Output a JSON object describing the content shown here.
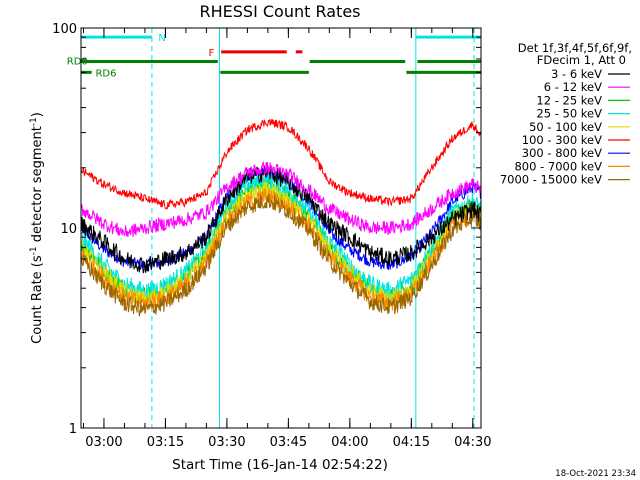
{
  "chart_data": {
    "type": "line",
    "title": "RHESSI Count Rates",
    "xlabel": "Start Time (16-Jan-14 02:54:22)",
    "ylabel_main": "Count Rate (s",
    "ylabel_sup1": "-1",
    "ylabel_mid": " detector segment",
    "ylabel_sup2": "-1",
    "ylabel_end": ")",
    "yscale": "log",
    "ylim": [
      1,
      100
    ],
    "xlim_minutes": [
      -5.6,
      92
    ],
    "xticks": [
      {
        "label": "03:00",
        "min": 0
      },
      {
        "label": "03:15",
        "min": 15
      },
      {
        "label": "03:30",
        "min": 30
      },
      {
        "label": "03:45",
        "min": 45
      },
      {
        "label": "04:00",
        "min": 60
      },
      {
        "label": "04:15",
        "min": 75
      },
      {
        "label": "04:30",
        "min": 90
      }
    ],
    "yticks": [
      {
        "label": "1",
        "value": 1
      },
      {
        "label": "10",
        "value": 10
      },
      {
        "label": "100",
        "value": 100
      }
    ],
    "legend": {
      "position": "right",
      "header_line1": "Det 1f,3f,4f,5f,6f,9f,",
      "header_line2": "FDecim 1, Att 0"
    },
    "series": [
      {
        "name": "3 - 6 keV",
        "color": "#000000",
        "x": [
          -5.6,
          0,
          5,
          10,
          15,
          20,
          25,
          30,
          35,
          40,
          45,
          50,
          55,
          60,
          65,
          70,
          75,
          80,
          85,
          90,
          92
        ],
        "y": [
          10.5,
          8.5,
          7.0,
          6.5,
          7.0,
          7.5,
          9.0,
          14.0,
          18.0,
          19.0,
          17.0,
          14.0,
          10.5,
          9.0,
          7.5,
          7.0,
          7.5,
          9.0,
          11.0,
          12.5,
          11.5
        ]
      },
      {
        "name": "6 - 12 keV",
        "color": "#ff00ff",
        "x": [
          -5.6,
          0,
          5,
          10,
          15,
          20,
          25,
          30,
          35,
          40,
          45,
          50,
          55,
          60,
          65,
          70,
          75,
          80,
          85,
          90,
          92
        ],
        "y": [
          12.5,
          10.5,
          9.5,
          10.0,
          10.5,
          11.0,
          12.0,
          16.0,
          19.0,
          20.0,
          18.5,
          15.5,
          12.5,
          11.0,
          10.0,
          10.0,
          10.5,
          12.5,
          15.0,
          16.5,
          15.5
        ]
      },
      {
        "name": "12 - 25 keV",
        "color": "#00cc00",
        "x": [
          -5.6,
          0,
          5,
          10,
          15,
          20,
          25,
          30,
          35,
          40,
          45,
          50,
          55,
          60,
          65,
          70,
          75,
          80,
          85,
          90,
          92
        ],
        "y": [
          8.5,
          6.2,
          5.0,
          4.6,
          5.0,
          5.8,
          7.5,
          12.0,
          15.5,
          16.5,
          14.5,
          11.5,
          8.0,
          6.2,
          5.0,
          4.6,
          5.2,
          7.5,
          11.5,
          13.0,
          12.0
        ]
      },
      {
        "name": "25 - 50 keV",
        "color": "#00e5e5",
        "x": [
          -5.6,
          0,
          5,
          10,
          15,
          20,
          25,
          30,
          35,
          40,
          45,
          50,
          55,
          60,
          65,
          70,
          75,
          80,
          85,
          90,
          92
        ],
        "y": [
          9.0,
          6.5,
          5.2,
          4.8,
          5.2,
          6.0,
          8.0,
          13.0,
          16.5,
          17.5,
          15.5,
          12.0,
          8.5,
          6.5,
          5.2,
          4.8,
          5.5,
          8.0,
          12.0,
          13.5,
          12.5
        ]
      },
      {
        "name": "50 - 100 keV",
        "color": "#dddd00",
        "x": [
          -5.6,
          0,
          5,
          10,
          15,
          20,
          25,
          30,
          35,
          40,
          45,
          50,
          55,
          60,
          65,
          70,
          75,
          80,
          85,
          90,
          92
        ],
        "y": [
          8.0,
          6.0,
          4.8,
          4.4,
          4.8,
          5.5,
          7.2,
          11.5,
          14.5,
          15.5,
          13.5,
          11.0,
          7.8,
          6.0,
          4.8,
          4.4,
          5.0,
          7.2,
          11.0,
          12.5,
          11.5
        ]
      },
      {
        "name": "100 - 300 keV",
        "color": "#ff0000",
        "x": [
          -5.6,
          0,
          5,
          10,
          15,
          20,
          25,
          30,
          35,
          40,
          45,
          50,
          55,
          60,
          65,
          70,
          75,
          80,
          85,
          90,
          92
        ],
        "y": [
          19.5,
          16.5,
          15.0,
          14.0,
          13.0,
          13.5,
          15.0,
          24.0,
          31.0,
          34.0,
          32.0,
          25.0,
          17.0,
          15.0,
          14.0,
          13.5,
          14.0,
          20.0,
          28.0,
          33.0,
          29.0
        ]
      },
      {
        "name": "300 - 800 keV",
        "color": "#0000ff",
        "x": [
          -5.6,
          0,
          5,
          10,
          15,
          20,
          25,
          30,
          35,
          40,
          45,
          50,
          55,
          60,
          65,
          70,
          75,
          80,
          85,
          90,
          92
        ],
        "y": [
          10.0,
          7.8,
          6.8,
          6.5,
          6.8,
          7.5,
          9.0,
          14.5,
          18.0,
          19.0,
          17.0,
          13.5,
          9.5,
          7.8,
          6.8,
          6.5,
          7.2,
          9.5,
          13.5,
          16.0,
          15.0
        ]
      },
      {
        "name": "800 - 7000 keV",
        "color": "#ff8800",
        "x": [
          -5.6,
          0,
          5,
          10,
          15,
          20,
          25,
          30,
          35,
          40,
          45,
          50,
          55,
          60,
          65,
          70,
          75,
          80,
          85,
          90,
          92
        ],
        "y": [
          7.5,
          5.6,
          4.5,
          4.2,
          4.5,
          5.2,
          6.8,
          10.8,
          13.5,
          14.5,
          12.8,
          10.2,
          7.2,
          5.6,
          4.5,
          4.2,
          4.7,
          6.8,
          10.2,
          11.8,
          11.0
        ]
      },
      {
        "name": "7000 - 15000 keV",
        "color": "#996600",
        "x": [
          -5.6,
          0,
          5,
          10,
          15,
          20,
          25,
          30,
          35,
          40,
          45,
          50,
          55,
          60,
          65,
          70,
          75,
          80,
          85,
          90,
          92
        ],
        "y": [
          7.0,
          5.2,
          4.2,
          3.9,
          4.2,
          4.9,
          6.4,
          10.2,
          12.8,
          13.8,
          12.2,
          9.8,
          6.9,
          5.3,
          4.3,
          4.0,
          4.5,
          6.5,
          9.8,
          11.3,
          10.5
        ]
      }
    ],
    "flag_bars": [
      {
        "label": "N",
        "color": "#00e5e5",
        "segments": [
          [
            -5.6,
            11.7
          ],
          [
            76.1,
            92
          ]
        ],
        "level": 90
      },
      {
        "label": "F",
        "color": "#ee0000",
        "segments": [
          [
            28.6,
            44.6
          ],
          [
            46.8,
            48.4
          ]
        ],
        "level": 76
      },
      {
        "label": "RD0",
        "color": "#008000",
        "segments": [
          [
            -5.6,
            27.8
          ],
          [
            50.2,
            73.5
          ],
          [
            76.5,
            92
          ]
        ],
        "level": 68
      },
      {
        "label": "RD6",
        "color": "#008000",
        "segments": [
          [
            -5.6,
            -3.0
          ],
          [
            28.4,
            50.0
          ],
          [
            73.8,
            92
          ]
        ],
        "level": 60
      }
    ],
    "event_markers": [
      {
        "min": 11.7,
        "style": "dashed"
      },
      {
        "min": 28.2,
        "style": "solid"
      },
      {
        "min": 76.1,
        "style": "solid"
      },
      {
        "min": 90.3,
        "style": "dashed"
      }
    ],
    "marker_color": "#00e5e5"
  },
  "footer": {
    "timestamp": "18-Oct-2021 23:34"
  }
}
